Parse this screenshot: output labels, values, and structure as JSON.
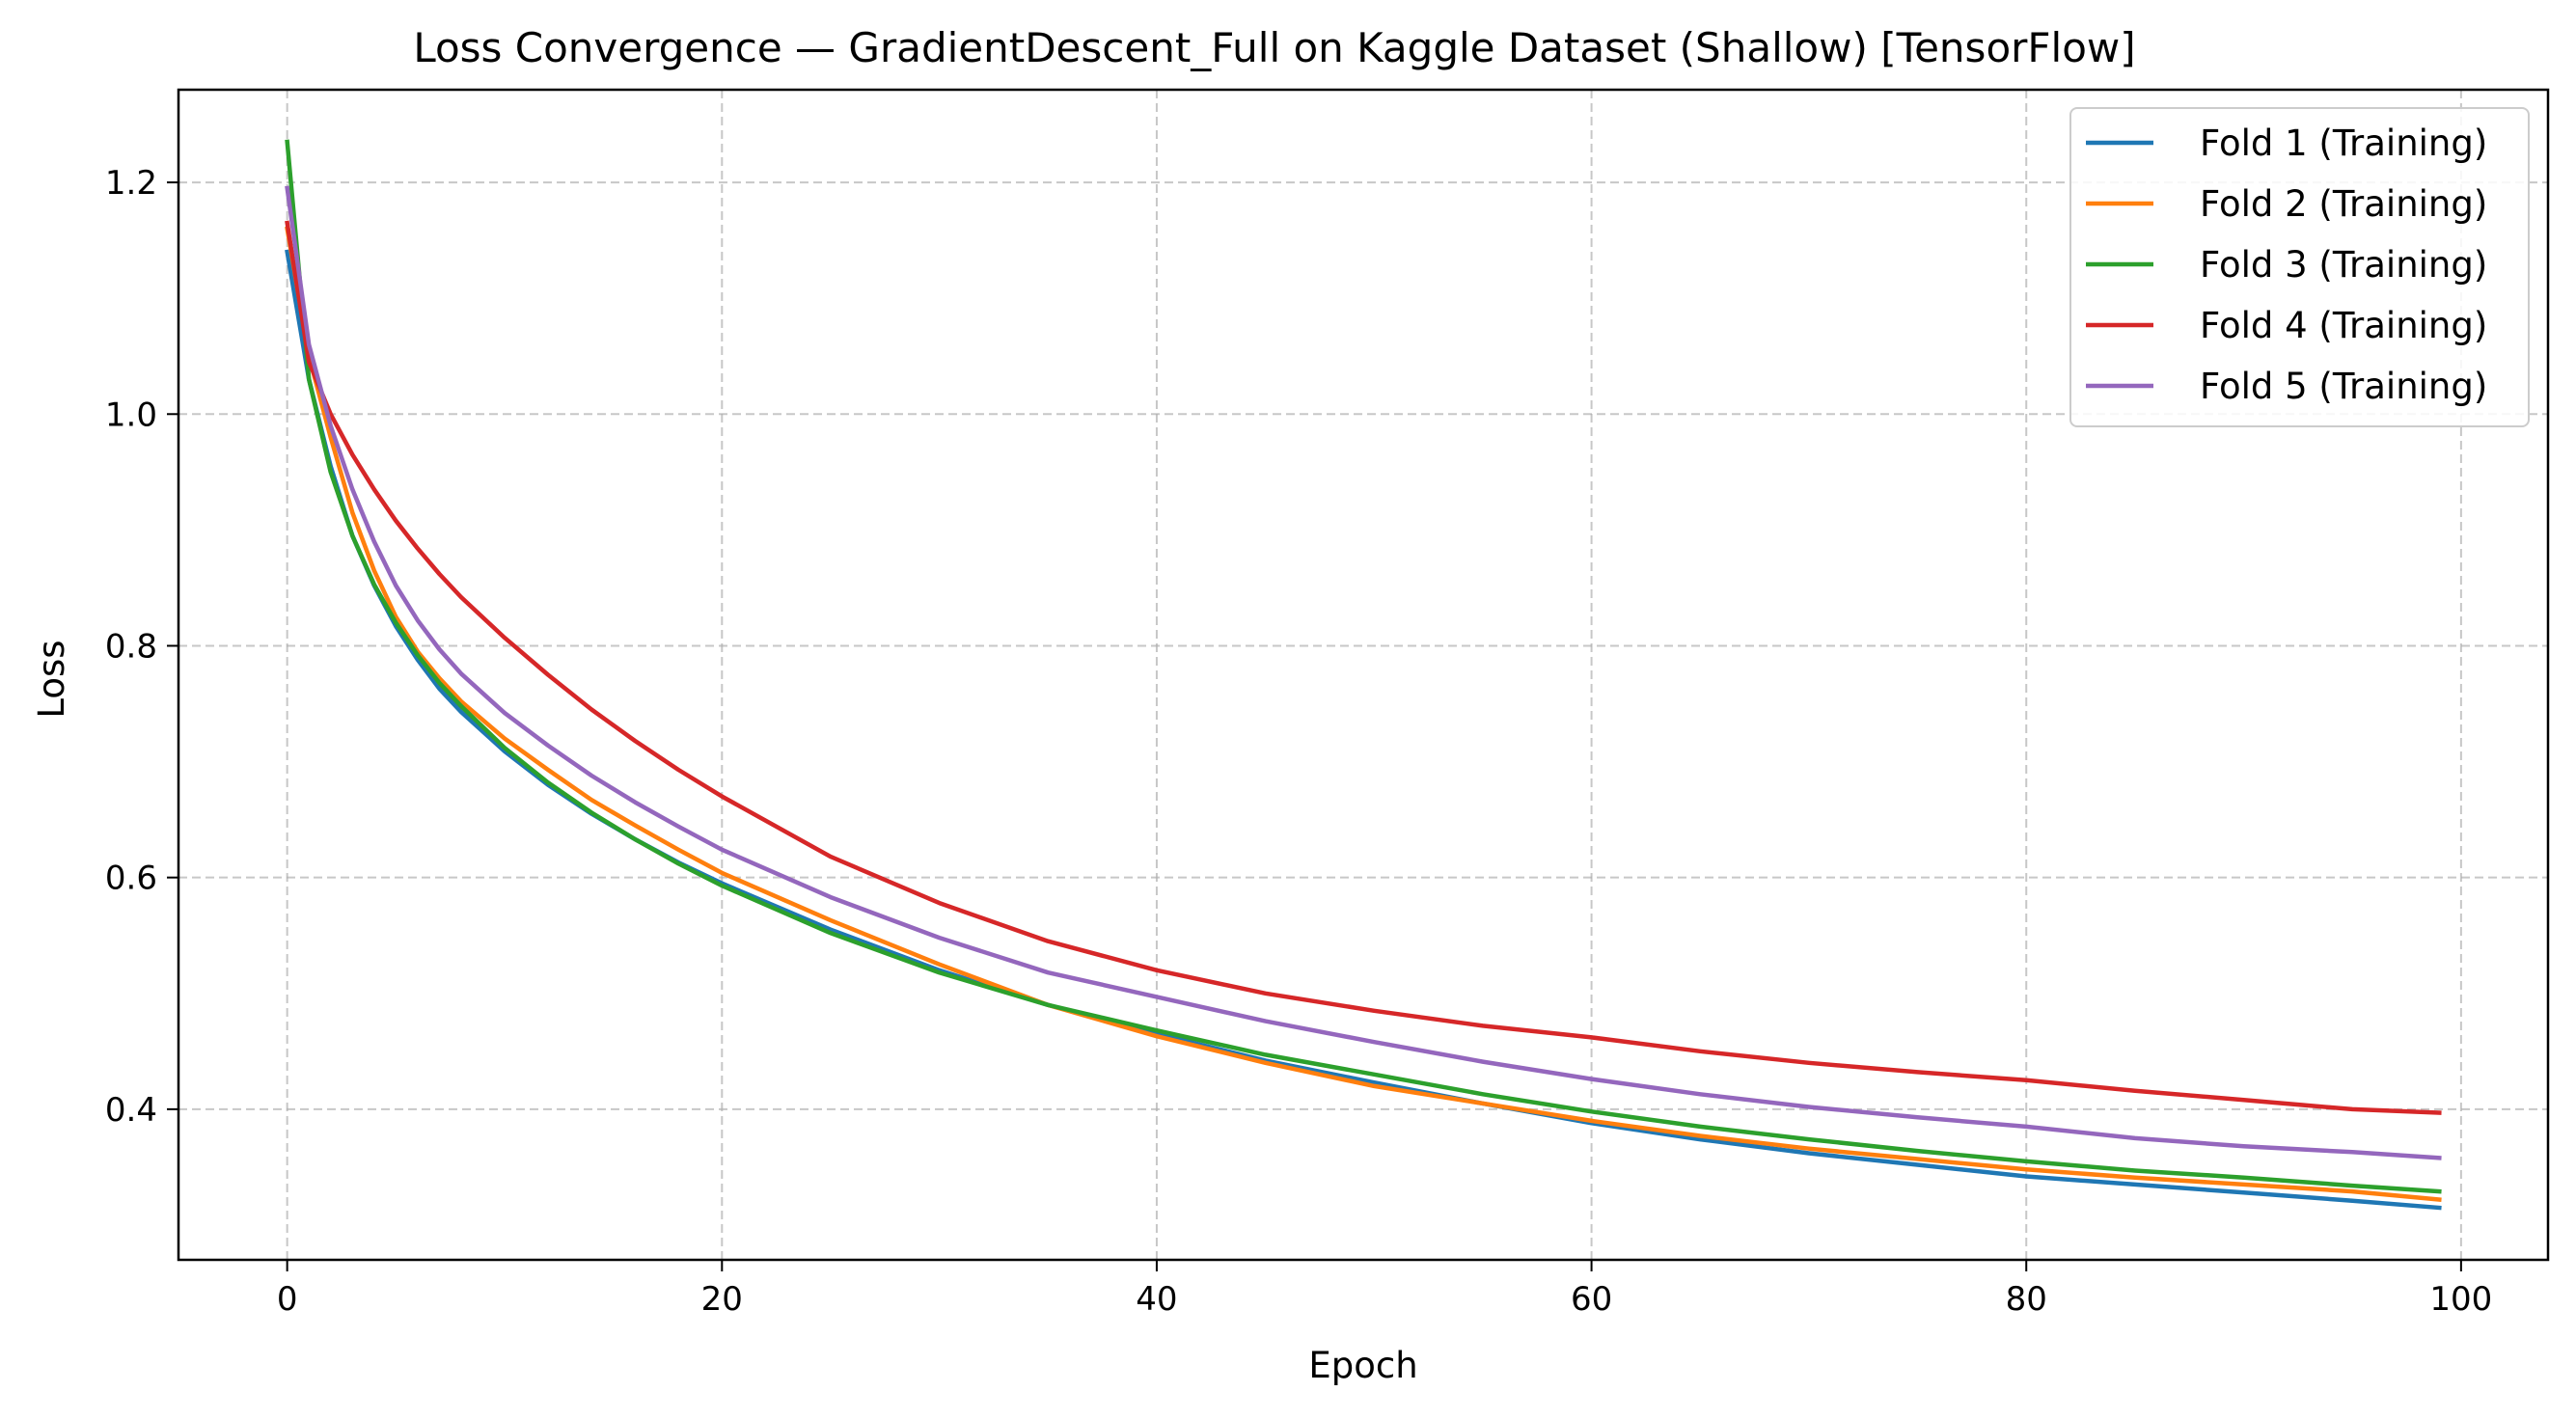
{
  "chart_data": {
    "type": "line",
    "title": "Loss Convergence — GradientDescent_Full on Kaggle Dataset (Shallow) [TensorFlow]",
    "xlabel": "Epoch",
    "ylabel": "Loss",
    "xlim": [
      -5,
      104
    ],
    "ylim": [
      0.27,
      1.28
    ],
    "xticks": [
      0,
      20,
      40,
      60,
      80,
      100
    ],
    "yticks": [
      0.4,
      0.6,
      0.8,
      1.0,
      1.2
    ],
    "xtick_labels": [
      "0",
      "20",
      "40",
      "60",
      "80",
      "100"
    ],
    "ytick_labels": [
      "0.4",
      "0.6",
      "0.8",
      "1.0",
      "1.2"
    ],
    "grid": true,
    "legend_position": "top-right",
    "series": [
      {
        "name": "Fold 1 (Training)",
        "color": "#1f77b4",
        "x": [
          0,
          1,
          2,
          3,
          4,
          5,
          6,
          7,
          8,
          10,
          12,
          14,
          16,
          18,
          20,
          25,
          30,
          35,
          40,
          45,
          50,
          55,
          60,
          65,
          70,
          75,
          80,
          85,
          90,
          95,
          99
        ],
        "y": [
          1.14,
          1.03,
          0.955,
          0.895,
          0.852,
          0.817,
          0.788,
          0.763,
          0.743,
          0.709,
          0.68,
          0.655,
          0.633,
          0.613,
          0.595,
          0.555,
          0.52,
          0.49,
          0.465,
          0.442,
          0.423,
          0.405,
          0.388,
          0.374,
          0.362,
          0.352,
          0.342,
          0.335,
          0.328,
          0.321,
          0.315
        ]
      },
      {
        "name": "Fold 2 (Training)",
        "color": "#ff7f0e",
        "x": [
          0,
          1,
          2,
          3,
          4,
          5,
          6,
          7,
          8,
          10,
          12,
          14,
          16,
          18,
          20,
          25,
          30,
          35,
          40,
          45,
          50,
          55,
          60,
          65,
          70,
          75,
          80,
          85,
          90,
          95,
          99
        ],
        "y": [
          1.16,
          1.05,
          0.98,
          0.915,
          0.865,
          0.825,
          0.795,
          0.772,
          0.752,
          0.72,
          0.693,
          0.667,
          0.645,
          0.624,
          0.604,
          0.563,
          0.525,
          0.49,
          0.463,
          0.44,
          0.42,
          0.405,
          0.39,
          0.377,
          0.366,
          0.357,
          0.348,
          0.341,
          0.335,
          0.329,
          0.322
        ]
      },
      {
        "name": "Fold 3 (Training)",
        "color": "#2ca02c",
        "x": [
          0,
          1,
          2,
          3,
          4,
          5,
          6,
          7,
          8,
          10,
          12,
          14,
          16,
          18,
          20,
          25,
          30,
          35,
          40,
          45,
          50,
          55,
          60,
          65,
          70,
          75,
          80,
          85,
          90,
          95,
          99
        ],
        "y": [
          1.235,
          1.03,
          0.95,
          0.895,
          0.853,
          0.82,
          0.792,
          0.768,
          0.748,
          0.712,
          0.682,
          0.656,
          0.633,
          0.612,
          0.593,
          0.552,
          0.518,
          0.49,
          0.468,
          0.447,
          0.43,
          0.413,
          0.398,
          0.385,
          0.374,
          0.364,
          0.355,
          0.347,
          0.341,
          0.334,
          0.329
        ]
      },
      {
        "name": "Fold 4 (Training)",
        "color": "#d62728",
        "x": [
          0,
          1,
          2,
          3,
          4,
          5,
          6,
          7,
          8,
          10,
          12,
          14,
          16,
          18,
          20,
          25,
          30,
          35,
          40,
          45,
          50,
          55,
          60,
          65,
          70,
          75,
          80,
          85,
          90,
          95,
          99
        ],
        "y": [
          1.165,
          1.045,
          1.0,
          0.965,
          0.935,
          0.908,
          0.884,
          0.862,
          0.842,
          0.807,
          0.775,
          0.745,
          0.718,
          0.693,
          0.67,
          0.618,
          0.578,
          0.545,
          0.52,
          0.5,
          0.485,
          0.472,
          0.462,
          0.45,
          0.44,
          0.432,
          0.425,
          0.416,
          0.408,
          0.4,
          0.397
        ]
      },
      {
        "name": "Fold 5 (Training)",
        "color": "#9467bd",
        "x": [
          0,
          1,
          2,
          3,
          4,
          5,
          6,
          7,
          8,
          10,
          12,
          14,
          16,
          18,
          20,
          25,
          30,
          35,
          40,
          45,
          50,
          55,
          60,
          65,
          70,
          75,
          80,
          85,
          90,
          95,
          99
        ],
        "y": [
          1.195,
          1.06,
          0.99,
          0.935,
          0.89,
          0.852,
          0.822,
          0.797,
          0.776,
          0.742,
          0.714,
          0.688,
          0.665,
          0.644,
          0.624,
          0.583,
          0.548,
          0.518,
          0.497,
          0.476,
          0.458,
          0.441,
          0.426,
          0.413,
          0.402,
          0.393,
          0.385,
          0.375,
          0.368,
          0.363,
          0.358
        ]
      }
    ]
  }
}
